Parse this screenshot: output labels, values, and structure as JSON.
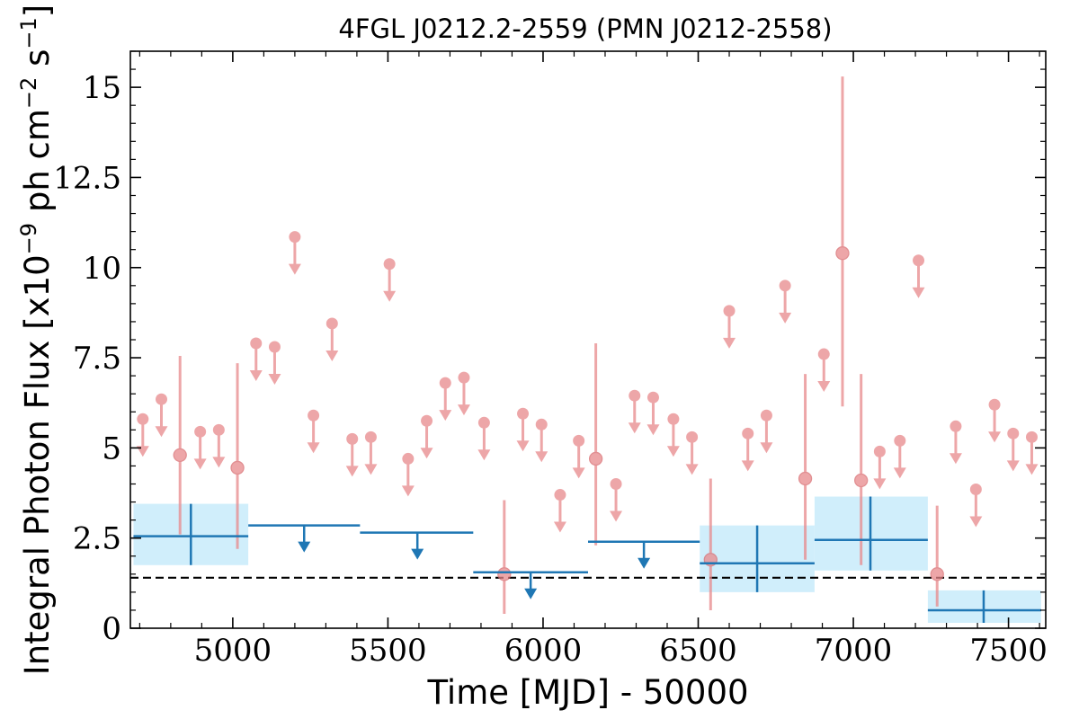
{
  "chart_data": {
    "type": "scatter",
    "title": "4FGL J0212.2-2559 (PMN J0212-2558)",
    "xlabel": "Time [MJD] - 50000",
    "ylabel": "Integral Photon Flux [x10^-9 ph cm^-2 s^-1]",
    "ylabel_parts": {
      "prefix": "Integral Photon Flux [x10",
      "exp1": "−9",
      "middle": " ph cm",
      "exp2": "−2",
      "tail": " s",
      "exp3": "−1",
      "close": "]"
    },
    "xlim": [
      4670,
      7620
    ],
    "ylim": [
      0,
      16
    ],
    "xticks": [
      5000,
      5500,
      6000,
      6500,
      7000,
      7500
    ],
    "xtick_labels": [
      "5000",
      "5500",
      "6000",
      "6500",
      "7000",
      "7500"
    ],
    "yticks": [
      0,
      2.5,
      5,
      7.5,
      10,
      12.5,
      15
    ],
    "ytick_labels": [
      "0",
      "2.5",
      "5",
      "7.5",
      "10",
      "12.5",
      "15"
    ],
    "reference_line": {
      "y": 1.4,
      "style": "dashed"
    },
    "colors": {
      "short_bins": "#e8898c",
      "long_bins": "#1f77b4",
      "long_bin_band": "#d0eefb"
    },
    "series": [
      {
        "detections": [
          {
            "x": 4830,
            "y": 4.8,
            "ylo": 2.6,
            "yhi": 7.55
          },
          {
            "x": 5015,
            "y": 4.45,
            "ylo": 2.2,
            "yhi": 7.35
          },
          {
            "x": 5875,
            "y": 1.5,
            "ylo": 0.4,
            "yhi": 3.55
          },
          {
            "x": 6170,
            "y": 4.7,
            "ylo": 2.3,
            "yhi": 7.9
          },
          {
            "x": 6540,
            "y": 1.9,
            "ylo": 0.5,
            "yhi": 4.15
          },
          {
            "x": 6845,
            "y": 4.15,
            "ylo": 1.9,
            "yhi": 7.05
          },
          {
            "x": 6965,
            "y": 10.4,
            "ylo": 6.15,
            "yhi": 15.3
          },
          {
            "x": 7025,
            "y": 4.1,
            "ylo": 1.75,
            "yhi": 7.05
          },
          {
            "x": 7270,
            "y": 1.5,
            "ylo": 0.6,
            "yhi": 3.4
          }
        ],
        "upper_limits": [
          {
            "x": 4710,
            "y": 5.8
          },
          {
            "x": 4770,
            "y": 6.35
          },
          {
            "x": 4895,
            "y": 5.45
          },
          {
            "x": 4955,
            "y": 5.5
          },
          {
            "x": 5075,
            "y": 7.9
          },
          {
            "x": 5135,
            "y": 7.8
          },
          {
            "x": 5200,
            "y": 10.85
          },
          {
            "x": 5260,
            "y": 5.9
          },
          {
            "x": 5320,
            "y": 8.45
          },
          {
            "x": 5385,
            "y": 5.25
          },
          {
            "x": 5445,
            "y": 5.3
          },
          {
            "x": 5505,
            "y": 10.1
          },
          {
            "x": 5565,
            "y": 4.7
          },
          {
            "x": 5625,
            "y": 5.75
          },
          {
            "x": 5685,
            "y": 6.8
          },
          {
            "x": 5745,
            "y": 6.95
          },
          {
            "x": 5810,
            "y": 5.7
          },
          {
            "x": 5935,
            "y": 5.95
          },
          {
            "x": 5995,
            "y": 5.65
          },
          {
            "x": 6055,
            "y": 3.7
          },
          {
            "x": 6115,
            "y": 5.2
          },
          {
            "x": 6235,
            "y": 4.0
          },
          {
            "x": 6295,
            "y": 6.45
          },
          {
            "x": 6355,
            "y": 6.4
          },
          {
            "x": 6420,
            "y": 5.8
          },
          {
            "x": 6480,
            "y": 5.3
          },
          {
            "x": 6600,
            "y": 8.8
          },
          {
            "x": 6660,
            "y": 5.4
          },
          {
            "x": 6720,
            "y": 5.9
          },
          {
            "x": 6780,
            "y": 9.5
          },
          {
            "x": 6905,
            "y": 7.6
          },
          {
            "x": 7085,
            "y": 4.9
          },
          {
            "x": 7150,
            "y": 5.2
          },
          {
            "x": 7210,
            "y": 10.2
          },
          {
            "x": 7330,
            "y": 5.6
          },
          {
            "x": 7395,
            "y": 3.85
          },
          {
            "x": 7455,
            "y": 6.2
          },
          {
            "x": 7515,
            "y": 5.4
          },
          {
            "x": 7575,
            "y": 5.3
          }
        ]
      },
      {
        "detections": [
          {
            "x": 4865,
            "xlo": 4680,
            "xhi": 5050,
            "y": 2.55,
            "ylo": 1.75,
            "yhi": 3.45
          },
          {
            "x": 6690,
            "xlo": 6505,
            "xhi": 6875,
            "y": 1.8,
            "ylo": 1.0,
            "yhi": 2.85
          },
          {
            "x": 7055,
            "xlo": 6875,
            "xhi": 7240,
            "y": 2.45,
            "ylo": 1.6,
            "yhi": 3.65
          },
          {
            "x": 7420,
            "xlo": 7240,
            "xhi": 7605,
            "y": 0.5,
            "ylo": 0.15,
            "yhi": 1.05
          }
        ],
        "upper_limits": [
          {
            "x": 5230,
            "xlo": 5050,
            "xhi": 5410,
            "y": 2.85
          },
          {
            "x": 5595,
            "xlo": 5410,
            "xhi": 5775,
            "y": 2.65
          },
          {
            "x": 5960,
            "xlo": 5775,
            "xhi": 6145,
            "y": 1.55
          },
          {
            "x": 6325,
            "xlo": 6145,
            "xhi": 6505,
            "y": 2.4
          }
        ]
      }
    ]
  }
}
